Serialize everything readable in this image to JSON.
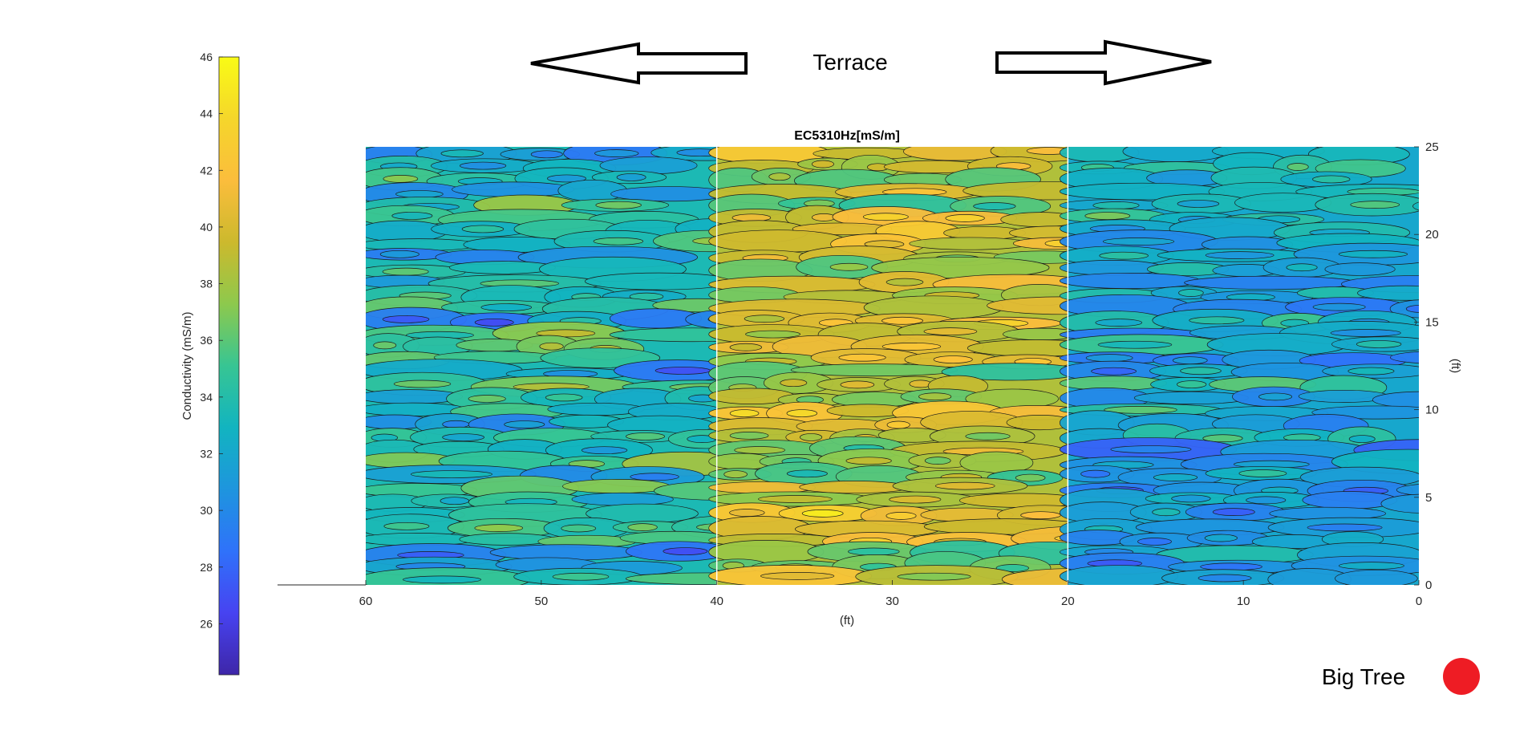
{
  "chart_data": {
    "type": "heatmap",
    "subtype": "filled-contour",
    "title": "EC5310Hz[mS/m]",
    "xlabel": "(ft)",
    "ylabel": "(ft)",
    "x_axis": {
      "ticks": [
        60,
        50,
        40,
        30,
        20,
        10,
        0
      ],
      "lim": [
        0,
        60
      ],
      "direction": "reverse"
    },
    "y_axis": {
      "ticks": [
        0,
        5,
        10,
        15,
        20,
        25
      ],
      "lim": [
        0,
        25
      ],
      "location": "right"
    },
    "panel_boundaries_x": [
      40,
      20
    ],
    "colorbar": {
      "label": "Conductivity (mS/m)",
      "ticks": [
        26,
        28,
        30,
        32,
        34,
        36,
        38,
        40,
        42,
        44,
        46
      ],
      "lim": [
        24.2,
        46
      ],
      "colormap": "parula",
      "colors": [
        "#3e26a8",
        "#4743f1",
        "#2f72fa",
        "#1e95de",
        "#12b4c0",
        "#37c593",
        "#8dc94d",
        "#ccb92d",
        "#fbbd3c",
        "#f5d62b",
        "#f9fb15"
      ]
    },
    "panels": [
      {
        "x_range": [
          60,
          40
        ],
        "mean_conductivity": 33.5
      },
      {
        "x_range": [
          40,
          20
        ],
        "mean_conductivity": 38.5
      },
      {
        "x_range": [
          20,
          0
        ],
        "mean_conductivity": 32.0
      }
    ],
    "grid": false
  },
  "annotations": {
    "terrace": "Terrace",
    "big_tree": "Big Tree",
    "marker_color": "#ee1c24"
  }
}
